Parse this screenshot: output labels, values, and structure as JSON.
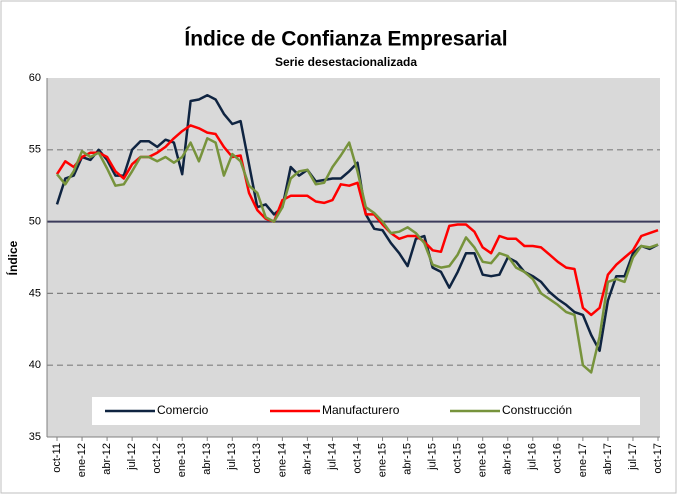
{
  "chart_data": {
    "type": "line",
    "title": "Índice de Confianza Empresarial",
    "subtitle": "Serie desestacionalizada",
    "y_label": "Índice",
    "categories": [
      "oct-11",
      null,
      null,
      "ene-12",
      null,
      null,
      "abr-12",
      null,
      null,
      "jul-12",
      null,
      null,
      "oct-12",
      null,
      null,
      "ene-13",
      null,
      null,
      "abr-13",
      null,
      null,
      "jul-13",
      null,
      null,
      "oct-13",
      null,
      null,
      "ene-14",
      null,
      null,
      "abr-14",
      null,
      null,
      "jul-14",
      null,
      null,
      "oct-14",
      null,
      null,
      "ene-15",
      null,
      null,
      "abr-15",
      null,
      null,
      "jul-15",
      null,
      null,
      "oct-15",
      null,
      null,
      "ene-16",
      null,
      null,
      "abr-16",
      null,
      null,
      "jul-16",
      null,
      null,
      "oct-16",
      null,
      null,
      "ene-17",
      null,
      null,
      "abr-17",
      null,
      null,
      "jul-17",
      null,
      null,
      "oct-17"
    ],
    "series": [
      {
        "name": "Comercio",
        "color": "#0f2441",
        "values": [
          51.2,
          53,
          53.2,
          54.5,
          54.3,
          55,
          54.3,
          53.2,
          53.2,
          55,
          55.6,
          55.6,
          55.2,
          55.7,
          55.5,
          53.3,
          58.4,
          58.5,
          58.8,
          58.5,
          57.5,
          56.8,
          57,
          54,
          51,
          51.2,
          50.5,
          51,
          53.8,
          53.2,
          53.6,
          52.8,
          52.9,
          53,
          53,
          53.5,
          54.1,
          50.5,
          49.5,
          49.4,
          48.5,
          47.8,
          46.9,
          48.8,
          49,
          46.8,
          46.5,
          45.4,
          46.5,
          47.8,
          47.8,
          46.3,
          46.2,
          46.3,
          47.5,
          47.2,
          46.5,
          46.2,
          45.8,
          45.1,
          44.6,
          44.2,
          43.7,
          43.5,
          42.1,
          41,
          44.5,
          46.2,
          46.2,
          47.8,
          48.3,
          48.1,
          48.4
        ]
      },
      {
        "name": "Manufacturero",
        "color": "#ff0000",
        "values": [
          53.3,
          54.2,
          53.8,
          54.5,
          54.8,
          54.8,
          54.5,
          53.5,
          53,
          54,
          54.5,
          54.5,
          54.8,
          55.2,
          55.8,
          56.3,
          56.7,
          56.5,
          56.2,
          56.1,
          55.2,
          54.5,
          54.6,
          52,
          50.8,
          50.2,
          50,
          51.5,
          51.8,
          51.8,
          51.8,
          51.4,
          51.3,
          51.5,
          52.6,
          52.5,
          52.7,
          50.5,
          50.5,
          49.8,
          49.2,
          48.8,
          49,
          49,
          48.6,
          48,
          47.9,
          49.7,
          49.8,
          49.8,
          49.3,
          48.2,
          47.8,
          49,
          48.8,
          48.8,
          48.3,
          48.3,
          48.2,
          47.7,
          47.2,
          46.8,
          46.7,
          44,
          43.5,
          44,
          46.3,
          47,
          47.5,
          48,
          49,
          49.2,
          49.4
        ]
      },
      {
        "name": "Construcción",
        "color": "#77933c",
        "values": [
          53.3,
          52.6,
          53.5,
          54.9,
          54.5,
          54.8,
          53.7,
          52.5,
          52.6,
          53.5,
          54.5,
          54.5,
          54.2,
          54.5,
          54.1,
          54.5,
          55.5,
          54.2,
          55.8,
          55.5,
          53.2,
          54.7,
          54.2,
          52.5,
          52,
          50.3,
          50,
          51,
          53,
          53.5,
          53.6,
          52.6,
          52.7,
          53.8,
          54.6,
          55.5,
          53.5,
          51,
          50.6,
          50,
          49.2,
          49.3,
          49.6,
          49.2,
          48.5,
          47,
          46.8,
          46.9,
          47.7,
          48.9,
          48.2,
          47.2,
          47.1,
          47.8,
          47.6,
          46.8,
          46.5,
          46,
          45,
          44.6,
          44.2,
          43.7,
          43.5,
          40,
          39.5,
          42,
          45.8,
          46,
          45.8,
          47.5,
          48.3,
          48.2,
          48.4
        ]
      }
    ],
    "ylim": [
      35,
      60
    ],
    "yticks": [
      35,
      40,
      45,
      50,
      55,
      60
    ],
    "reference_line": 50,
    "grid": true,
    "legend": "bottom"
  }
}
